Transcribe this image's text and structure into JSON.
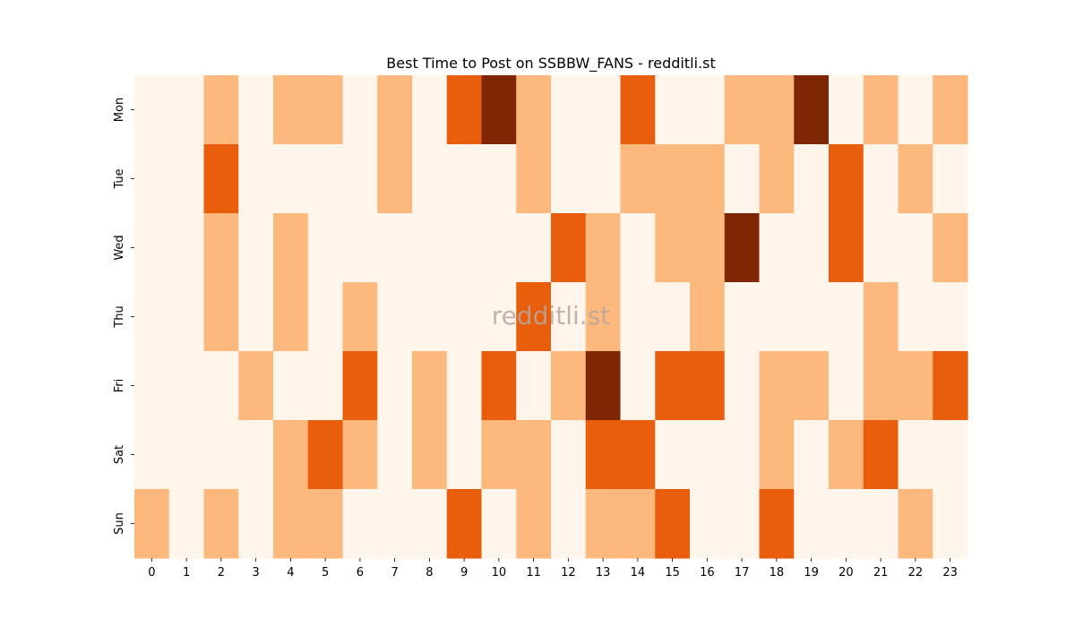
{
  "chart_data": {
    "type": "heatmap",
    "title": "Best Time to Post on SSBBW_FANS - redditli.st",
    "watermark": "redditli.st",
    "xlabel": "",
    "ylabel": "",
    "x_categories": [
      "0",
      "1",
      "2",
      "3",
      "4",
      "5",
      "6",
      "7",
      "8",
      "9",
      "10",
      "11",
      "12",
      "13",
      "14",
      "15",
      "16",
      "17",
      "18",
      "19",
      "20",
      "21",
      "22",
      "23"
    ],
    "y_categories": [
      "Mon",
      "Tue",
      "Wed",
      "Thu",
      "Fri",
      "Sat",
      "Sun"
    ],
    "values": [
      [
        0,
        0,
        1,
        0,
        1,
        1,
        0,
        1,
        0,
        2,
        3,
        1,
        0,
        0,
        2,
        0,
        0,
        1,
        1,
        3,
        0,
        1,
        0,
        1
      ],
      [
        0,
        0,
        2,
        0,
        0,
        0,
        0,
        1,
        0,
        0,
        0,
        1,
        0,
        0,
        1,
        1,
        1,
        0,
        1,
        0,
        2,
        0,
        1,
        0
      ],
      [
        0,
        0,
        1,
        0,
        1,
        0,
        0,
        0,
        0,
        0,
        0,
        0,
        2,
        1,
        0,
        1,
        1,
        3,
        0,
        0,
        2,
        0,
        0,
        1
      ],
      [
        0,
        0,
        1,
        0,
        1,
        0,
        1,
        0,
        0,
        0,
        0,
        2,
        0,
        1,
        0,
        0,
        1,
        0,
        0,
        0,
        0,
        1,
        0,
        0
      ],
      [
        0,
        0,
        0,
        1,
        0,
        0,
        2,
        0,
        1,
        0,
        2,
        0,
        1,
        3,
        0,
        2,
        2,
        0,
        1,
        1,
        0,
        1,
        1,
        2
      ],
      [
        0,
        0,
        0,
        0,
        1,
        2,
        1,
        0,
        1,
        0,
        1,
        1,
        0,
        2,
        2,
        0,
        0,
        0,
        1,
        0,
        1,
        2,
        0,
        0
      ],
      [
        1,
        0,
        1,
        0,
        1,
        1,
        0,
        0,
        0,
        2,
        0,
        1,
        0,
        1,
        1,
        2,
        0,
        0,
        2,
        0,
        0,
        0,
        1,
        0
      ]
    ],
    "value_range": [
      0,
      3
    ],
    "colormap": [
      "#fff5eb",
      "#fdb97d",
      "#e95e0d",
      "#7f2704"
    ],
    "grid": false,
    "legend": "none"
  }
}
